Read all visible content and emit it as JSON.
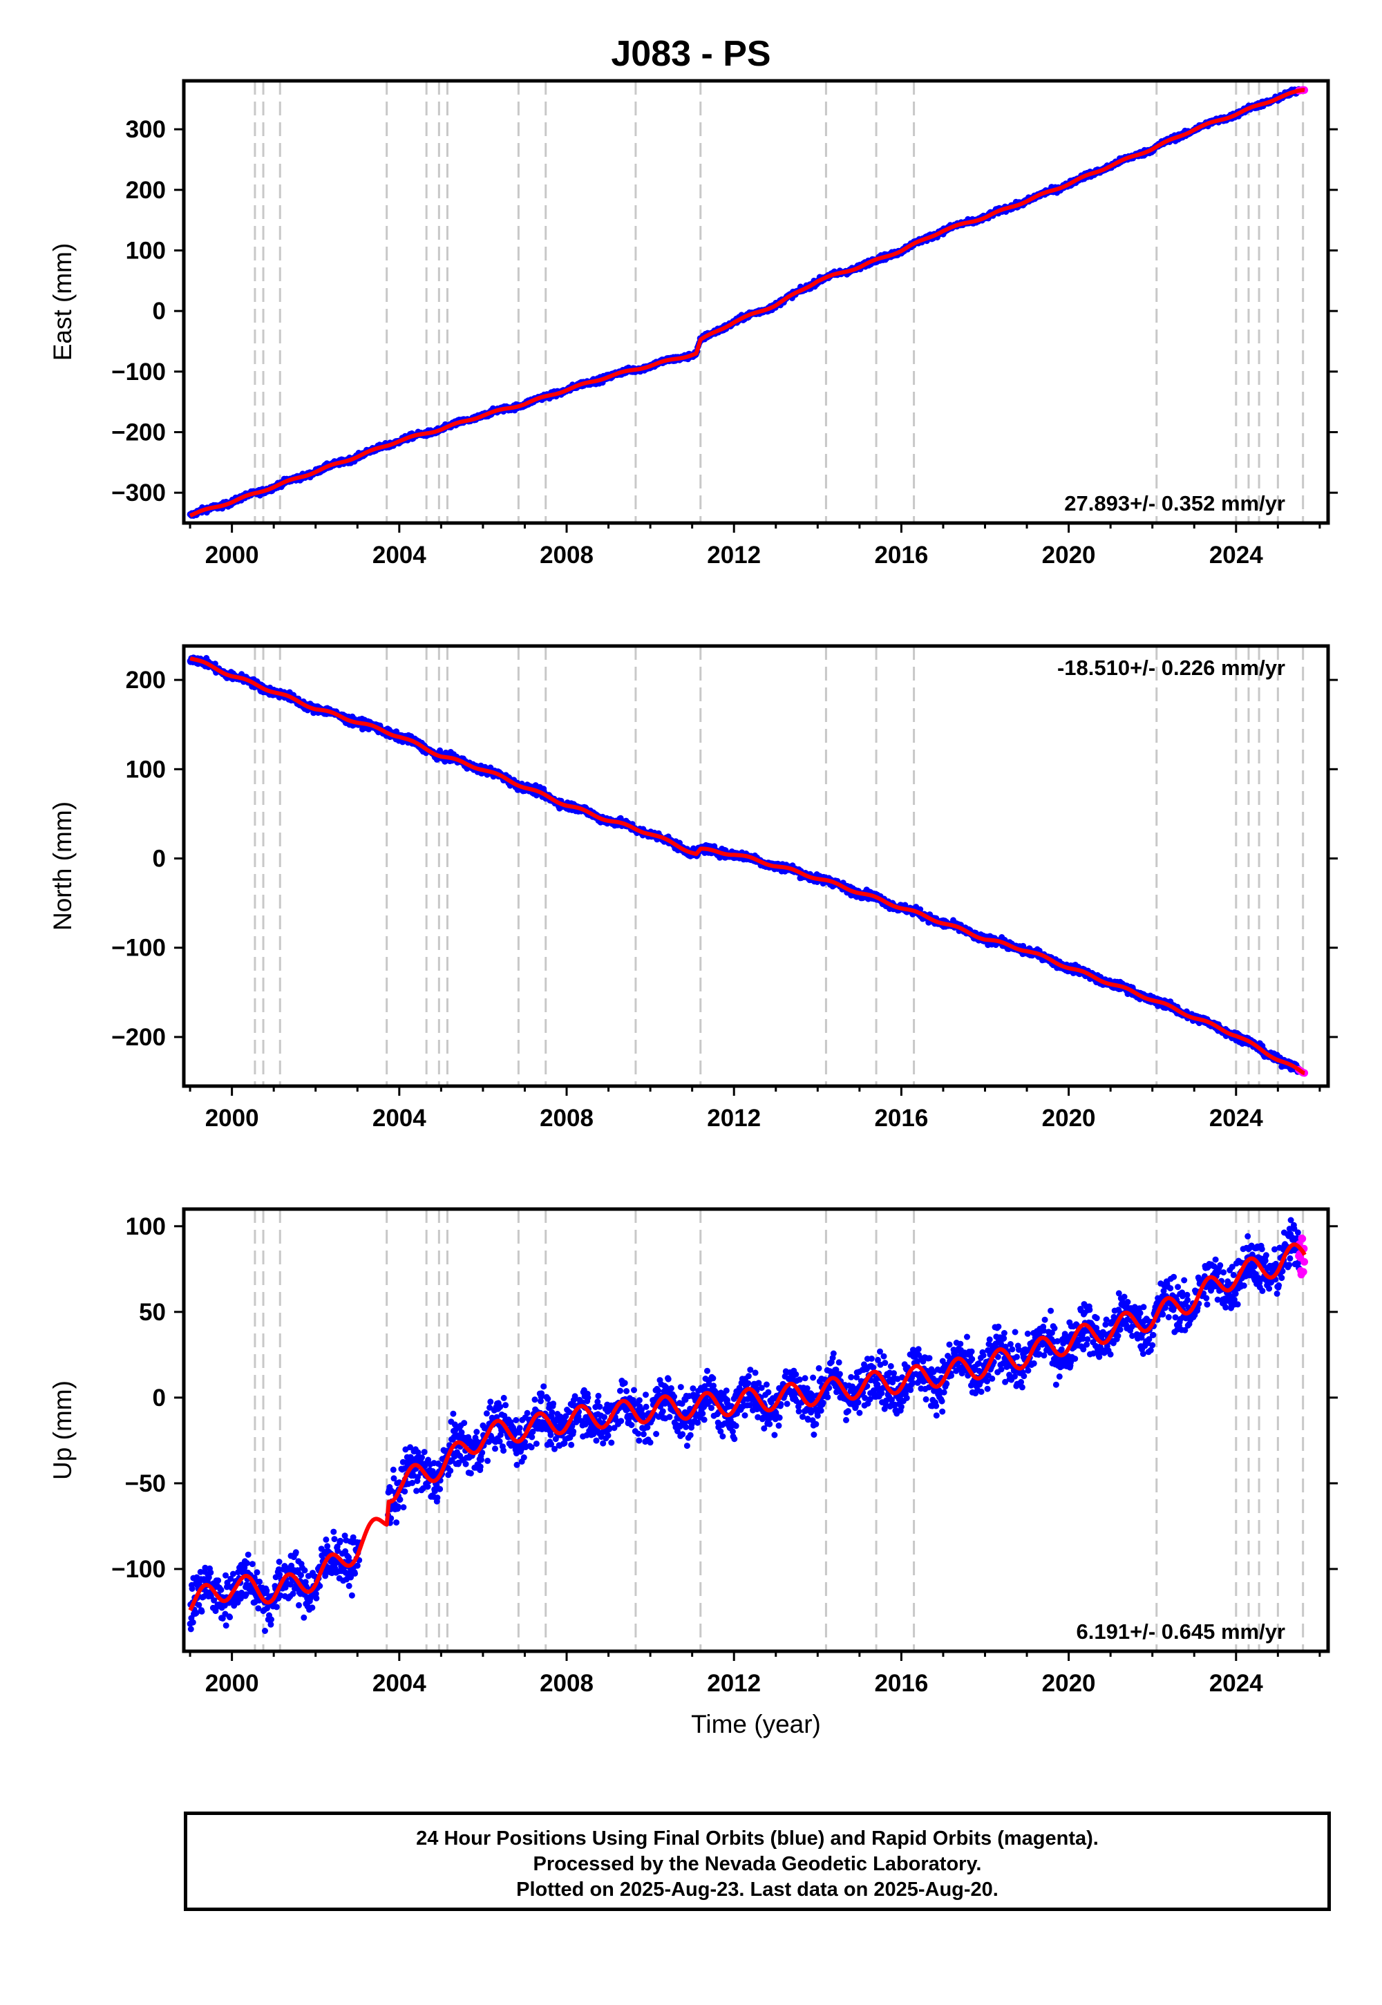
{
  "title": "J083 - PS",
  "xlabel": "Time (year)",
  "xticks": [
    2000,
    2004,
    2008,
    2012,
    2016,
    2020,
    2024
  ],
  "xlim": [
    1998.85,
    2026.2
  ],
  "events": [
    2000.55,
    2000.75,
    2001.15,
    2003.7,
    2004.65,
    2004.95,
    2005.15,
    2006.85,
    2007.5,
    2009.65,
    2011.2,
    2014.2,
    2015.4,
    2016.3,
    2022.1,
    2024.0,
    2024.3,
    2024.55,
    2025.0,
    2025.6
  ],
  "footer": {
    "line1": "24 Hour Positions Using Final Orbits (blue) and Rapid Orbits (magenta).",
    "line2": "Processed by the Nevada Geodetic Laboratory.",
    "line3": "Plotted on 2025-Aug-23. Last data on 2025-Aug-20."
  },
  "colors": {
    "final": "#0000ff",
    "rapid": "#ff00ff",
    "model": "#ff0000",
    "event": "#c8c8c8"
  },
  "chart_data": [
    {
      "type": "scatter",
      "ylabel": "East (mm)",
      "ylim": [
        -350,
        380
      ],
      "yticks": [
        -300,
        -200,
        -100,
        0,
        100,
        200,
        300
      ],
      "rate": "27.893+/- 0.352 mm/yr",
      "rate_position": "bottom-right",
      "series": [
        {
          "values": [
            [
              1999.0,
              -337
            ],
            [
              2000.0,
              -315
            ],
            [
              2001.0,
              -290
            ],
            [
              2002.0,
              -265
            ],
            [
              2003.0,
              -240
            ],
            [
              2004.0,
              -214
            ],
            [
              2005.0,
              -195
            ],
            [
              2006.0,
              -172
            ],
            [
              2007.0,
              -153
            ],
            [
              2008.0,
              -130
            ],
            [
              2009.0,
              -108
            ],
            [
              2010.0,
              -90
            ],
            [
              2011.1,
              -70
            ],
            [
              2011.2,
              -48
            ],
            [
              2012.0,
              -18
            ],
            [
              2013.0,
              10
            ],
            [
              2014.0,
              50
            ],
            [
              2015.0,
              73
            ],
            [
              2016.0,
              100
            ],
            [
              2017.0,
              133
            ],
            [
              2018.0,
              155
            ],
            [
              2019.0,
              182
            ],
            [
              2020.0,
              210
            ],
            [
              2021.0,
              240
            ],
            [
              2022.0,
              268
            ],
            [
              2023.0,
              300
            ],
            [
              2024.0,
              325
            ],
            [
              2025.0,
              352
            ],
            [
              2025.6,
              365
            ]
          ]
        }
      ]
    },
    {
      "type": "scatter",
      "ylabel": "North (mm)",
      "ylim": [
        -255,
        238
      ],
      "yticks": [
        -200,
        -100,
        0,
        100,
        200
      ],
      "rate": "-18.510+/- 0.226 mm/yr",
      "rate_position": "top-right",
      "series": [
        {
          "values": [
            [
              1999.0,
              225
            ],
            [
              2000.0,
              205
            ],
            [
              2001.0,
              187
            ],
            [
              2002.0,
              168
            ],
            [
              2003.0,
              153
            ],
            [
              2004.0,
              137
            ],
            [
              2005.0,
              115
            ],
            [
              2006.0,
              100
            ],
            [
              2007.0,
              80
            ],
            [
              2008.0,
              60
            ],
            [
              2009.0,
              43
            ],
            [
              2010.0,
              28
            ],
            [
              2011.1,
              5
            ],
            [
              2011.2,
              10
            ],
            [
              2012.0,
              5
            ],
            [
              2013.0,
              -8
            ],
            [
              2014.0,
              -22
            ],
            [
              2015.0,
              -38
            ],
            [
              2016.0,
              -55
            ],
            [
              2017.0,
              -72
            ],
            [
              2018.0,
              -90
            ],
            [
              2019.0,
              -103
            ],
            [
              2020.0,
              -122
            ],
            [
              2021.0,
              -140
            ],
            [
              2022.0,
              -158
            ],
            [
              2023.0,
              -178
            ],
            [
              2024.0,
              -198
            ],
            [
              2025.0,
              -225
            ],
            [
              2025.6,
              -240
            ]
          ]
        }
      ]
    },
    {
      "type": "scatter",
      "ylabel": "Up (mm)",
      "ylim": [
        -148,
        110
      ],
      "yticks": [
        -100,
        -50,
        0,
        50,
        100
      ],
      "rate": "6.191+/- 0.645 mm/yr",
      "rate_position": "bottom-right",
      "series": [
        {
          "values": [
            [
              1999.0,
              -120
            ],
            [
              2000.0,
              -110
            ],
            [
              2001.0,
              -113
            ],
            [
              2002.0,
              -105
            ],
            [
              2003.0,
              -88
            ],
            [
              2003.7,
              -70
            ],
            [
              2003.75,
              -55
            ],
            [
              2004.0,
              -50
            ],
            [
              2005.0,
              -40
            ],
            [
              2006.0,
              -22
            ],
            [
              2007.0,
              -18
            ],
            [
              2008.0,
              -13
            ],
            [
              2009.0,
              -10
            ],
            [
              2010.0,
              -7
            ],
            [
              2011.0,
              -5
            ],
            [
              2012.0,
              -3
            ],
            [
              2013.0,
              0
            ],
            [
              2014.0,
              3
            ],
            [
              2015.0,
              7
            ],
            [
              2016.0,
              10
            ],
            [
              2017.0,
              14
            ],
            [
              2018.0,
              19
            ],
            [
              2019.0,
              25
            ],
            [
              2020.0,
              33
            ],
            [
              2021.0,
              40
            ],
            [
              2022.0,
              47
            ],
            [
              2023.0,
              58
            ],
            [
              2024.0,
              72
            ],
            [
              2025.0,
              78
            ],
            [
              2025.6,
              85
            ]
          ]
        }
      ]
    }
  ]
}
